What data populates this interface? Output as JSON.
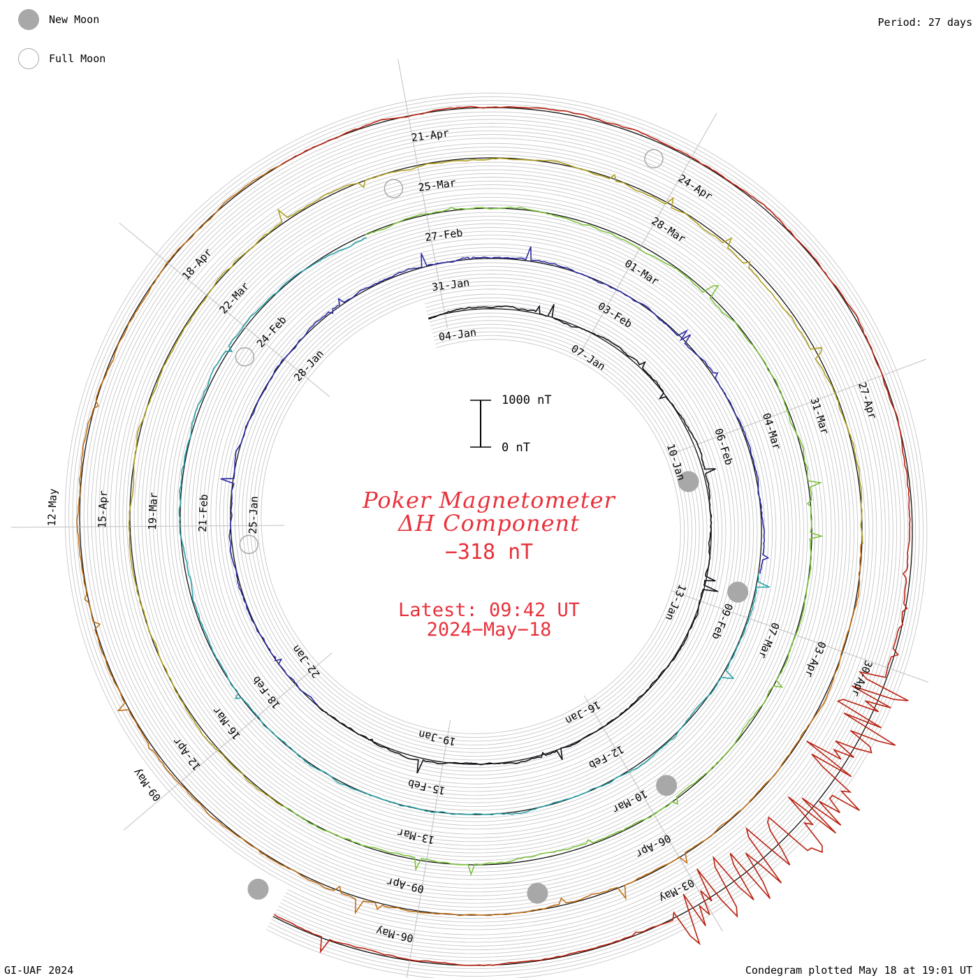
{
  "legend": {
    "new_moon_label": "New Moon",
    "full_moon_label": "Full Moon"
  },
  "period_text": "Period: 27 days",
  "footer_left": "GI-UAF 2024",
  "footer_right": "Condegram plotted May 18 at 19:01 UT",
  "title": {
    "line1": "Poker Magnetometer",
    "line2": "ΔH Component",
    "current_value": "−318 nT",
    "latest_line1": "Latest: 09:42 UT",
    "latest_line2": "2024−May−18"
  },
  "scale_bar": {
    "top_label": "1000 nT",
    "bottom_label": "0 nT"
  },
  "colors": {
    "title_red": "#e8323c",
    "grid": "#c0c0c0",
    "moon_gray": "#a8a8a8",
    "turns": [
      "#101018",
      "#2a2aa0",
      "#2aa0a8",
      "#7cc23c",
      "#b0a020",
      "#c07018",
      "#b82010"
    ]
  },
  "chart_data": {
    "type": "line",
    "chart_kind": "condegram (polar spiral, one turn per period)",
    "period_days": 27,
    "units": "nT",
    "scale_nT": [
      0,
      1000
    ],
    "turns": [
      {
        "dates": [
          "04-Jan",
          "07-Jan",
          "10-Jan",
          "13-Jan",
          "16-Jan",
          "19-Jan",
          "22-Jan",
          "25-Jan",
          "28-Jan"
        ]
      },
      {
        "dates": [
          "31-Jan",
          "03-Feb",
          "06-Feb",
          "09-Feb",
          "12-Feb",
          "15-Feb",
          "18-Feb",
          "21-Feb",
          "24-Feb"
        ]
      },
      {
        "dates": [
          "27-Feb",
          "01-Mar",
          "04-Mar",
          "07-Mar",
          "10-Mar",
          "13-Mar",
          "16-Mar",
          "19-Mar",
          "22-Mar"
        ]
      },
      {
        "dates": [
          "25-Mar",
          "28-Mar",
          "31-Mar",
          "03-Apr",
          "06-Apr",
          "09-Apr",
          "12-Apr",
          "15-Apr",
          "18-Apr"
        ]
      },
      {
        "dates": [
          "21-Apr",
          "24-Apr",
          "27-Apr",
          "30-Apr",
          "03-May",
          "06-May",
          "09-May",
          "12-May"
        ]
      }
    ],
    "new_moons": [
      "11-Jan",
      "09-Feb",
      "10-Mar",
      "08-Apr",
      "08-May"
    ],
    "full_moons": [
      "25-Jan",
      "24-Feb",
      "25-Mar",
      "24-Apr"
    ],
    "latest_value_nT": -318,
    "latest_time": "2024-May-18 09:42 UT"
  }
}
